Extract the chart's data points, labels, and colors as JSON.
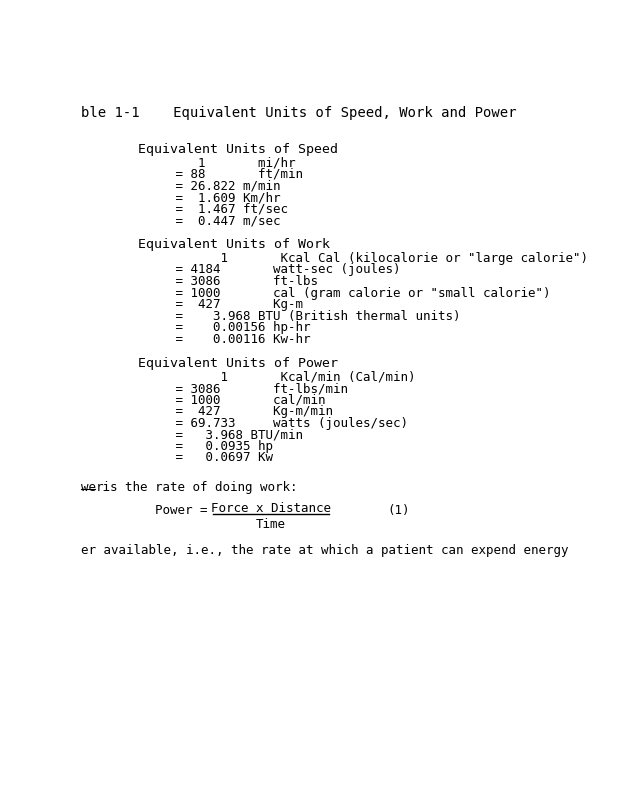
{
  "bg_color": "#ffffff",
  "title_line": "ble 1-1    Equivalent Units of Speed, Work and Power",
  "sections": [
    {
      "header": "Equivalent Units of Speed",
      "lines": [
        "      1       mi/hr",
        "   = 88       ft/min",
        "   = 26.822 m/min",
        "   =  1.609 Km/hr",
        "   =  1.467 ft/sec",
        "   =  0.447 m/sec"
      ]
    },
    {
      "header": "Equivalent Units of Work",
      "lines": [
        "         1       Kcal Cal (kilocalorie or \"large calorie\")",
        "   = 4184       watt-sec (joules)",
        "   = 3086       ft-lbs",
        "   = 1000       cal (gram calorie or \"small calorie\")",
        "   =  427       Kg-m",
        "   =    3.968 BTU (British thermal units)",
        "   =    0.00156 hp-hr",
        "   =    0.00116 Kw-hr"
      ]
    },
    {
      "header": "Equivalent Units of Power",
      "lines": [
        "         1       Kcal/min (Cal/min)",
        "   = 3086       ft-lbs/min",
        "   = 1000       cal/min",
        "   =  427       Kg-m/min",
        "   = 69.733     watts (joules/sec)",
        "   =   3.968 BTU/min",
        "   =   0.0935 hp",
        "   =   0.0697 Kw"
      ]
    }
  ],
  "underline_word": "wer",
  "bottom_line1_rest": " is the rate of doing work:",
  "power_label": "Power =",
  "power_numerator": "Force x Distance",
  "power_denominator": "Time",
  "power_eq_number": "(1)",
  "bottom_line2": "er available, i.e., the rate at which a patient can expend energy",
  "font_family": "monospace",
  "font_size": 9,
  "title_font_size": 10,
  "header_font_size": 9.5,
  "text_color": "#000000"
}
